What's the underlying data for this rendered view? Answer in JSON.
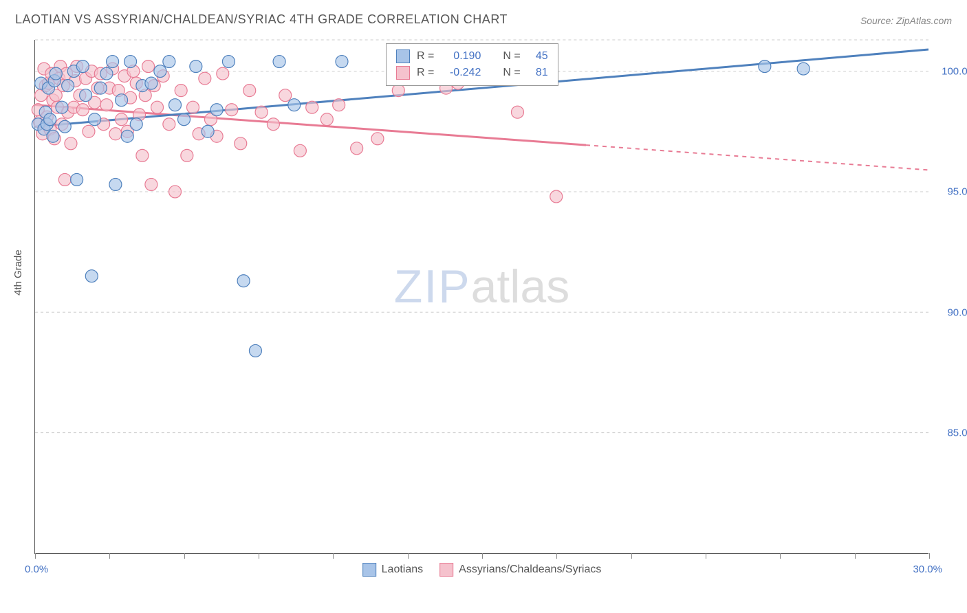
{
  "title": "LAOTIAN VS ASSYRIAN/CHALDEAN/SYRIAC 4TH GRADE CORRELATION CHART",
  "source": "Source: ZipAtlas.com",
  "y_axis_label": "4th Grade",
  "watermark_zip": "ZIP",
  "watermark_atlas": "atlas",
  "xlim": [
    0,
    30
  ],
  "ylim": [
    80,
    101.3
  ],
  "x_ticks": [
    0,
    2.5,
    5,
    7.5,
    10,
    12.5,
    15,
    17.5,
    20,
    22.5,
    25,
    27.5,
    30
  ],
  "x_tick_labels": {
    "0": "0.0%",
    "30": "30.0%"
  },
  "y_grid": [
    85,
    90,
    95,
    100,
    101.3
  ],
  "y_tick_labels": {
    "85": "85.0%",
    "90": "90.0%",
    "95": "95.0%",
    "100": "100.0%"
  },
  "series": {
    "laotians": {
      "label": "Laotians",
      "color_fill": "#a8c4e8",
      "color_stroke": "#4f81bd",
      "r_label": "R =",
      "r_value": "0.190",
      "n_label": "N =",
      "n_value": "45",
      "marker_radius": 9,
      "trend": {
        "x1": 0,
        "y1": 97.7,
        "x2": 30,
        "y2": 100.9,
        "data_xmax": 30
      },
      "points": [
        [
          0.1,
          97.8
        ],
        [
          0.2,
          99.5
        ],
        [
          0.3,
          97.6
        ],
        [
          0.35,
          98.3
        ],
        [
          0.4,
          97.8
        ],
        [
          0.45,
          99.3
        ],
        [
          0.5,
          98.0
        ],
        [
          0.6,
          97.3
        ],
        [
          0.65,
          99.6
        ],
        [
          0.7,
          99.9
        ],
        [
          0.9,
          98.5
        ],
        [
          1.0,
          97.7
        ],
        [
          1.1,
          99.4
        ],
        [
          1.3,
          100.0
        ],
        [
          1.4,
          95.5
        ],
        [
          1.6,
          100.2
        ],
        [
          1.7,
          99.0
        ],
        [
          1.9,
          91.5
        ],
        [
          2.0,
          98.0
        ],
        [
          2.2,
          99.3
        ],
        [
          2.4,
          99.9
        ],
        [
          2.6,
          100.4
        ],
        [
          2.7,
          95.3
        ],
        [
          2.9,
          98.8
        ],
        [
          3.1,
          97.3
        ],
        [
          3.2,
          100.4
        ],
        [
          3.4,
          97.8
        ],
        [
          3.6,
          99.4
        ],
        [
          3.9,
          99.5
        ],
        [
          4.2,
          100.0
        ],
        [
          4.5,
          100.4
        ],
        [
          4.7,
          98.6
        ],
        [
          5.0,
          98.0
        ],
        [
          5.4,
          100.2
        ],
        [
          5.8,
          97.5
        ],
        [
          6.1,
          98.4
        ],
        [
          6.5,
          100.4
        ],
        [
          7.0,
          91.3
        ],
        [
          7.4,
          88.4
        ],
        [
          8.2,
          100.4
        ],
        [
          8.7,
          98.6
        ],
        [
          10.3,
          100.4
        ],
        [
          24.5,
          100.2
        ],
        [
          25.8,
          100.1
        ]
      ]
    },
    "assyrians": {
      "label": "Assyrians/Chaldeans/Syriacs",
      "color_fill": "#f5c2cd",
      "color_stroke": "#e87b94",
      "r_label": "R =",
      "r_value": "-0.242",
      "n_label": "N =",
      "n_value": "81",
      "marker_radius": 9,
      "trend": {
        "x1": 0,
        "y1": 98.6,
        "x2": 30,
        "y2": 95.9,
        "data_xmax": 18.5
      },
      "points": [
        [
          0.1,
          98.4
        ],
        [
          0.15,
          97.9
        ],
        [
          0.2,
          99.0
        ],
        [
          0.25,
          97.4
        ],
        [
          0.3,
          100.1
        ],
        [
          0.35,
          99.4
        ],
        [
          0.4,
          98.1
        ],
        [
          0.45,
          99.5
        ],
        [
          0.5,
          97.6
        ],
        [
          0.55,
          99.9
        ],
        [
          0.6,
          98.8
        ],
        [
          0.65,
          97.2
        ],
        [
          0.7,
          99.0
        ],
        [
          0.75,
          98.5
        ],
        [
          0.8,
          99.7
        ],
        [
          0.85,
          100.2
        ],
        [
          0.9,
          97.8
        ],
        [
          0.95,
          99.4
        ],
        [
          1.0,
          95.5
        ],
        [
          1.05,
          99.9
        ],
        [
          1.1,
          98.3
        ],
        [
          1.2,
          97.0
        ],
        [
          1.3,
          98.5
        ],
        [
          1.35,
          99.6
        ],
        [
          1.4,
          100.2
        ],
        [
          1.5,
          99.0
        ],
        [
          1.6,
          98.4
        ],
        [
          1.7,
          99.7
        ],
        [
          1.8,
          97.5
        ],
        [
          1.9,
          100.0
        ],
        [
          2.0,
          98.7
        ],
        [
          2.1,
          99.3
        ],
        [
          2.2,
          99.9
        ],
        [
          2.3,
          97.8
        ],
        [
          2.4,
          98.6
        ],
        [
          2.5,
          99.3
        ],
        [
          2.6,
          100.1
        ],
        [
          2.7,
          97.4
        ],
        [
          2.8,
          99.2
        ],
        [
          2.9,
          98.0
        ],
        [
          3.0,
          99.8
        ],
        [
          3.1,
          97.5
        ],
        [
          3.2,
          98.9
        ],
        [
          3.3,
          100.0
        ],
        [
          3.4,
          99.5
        ],
        [
          3.5,
          98.2
        ],
        [
          3.6,
          96.5
        ],
        [
          3.7,
          99.0
        ],
        [
          3.8,
          100.2
        ],
        [
          3.9,
          95.3
        ],
        [
          4.0,
          99.4
        ],
        [
          4.1,
          98.5
        ],
        [
          4.3,
          99.8
        ],
        [
          4.5,
          97.8
        ],
        [
          4.7,
          95.0
        ],
        [
          4.9,
          99.2
        ],
        [
          5.1,
          96.5
        ],
        [
          5.3,
          98.5
        ],
        [
          5.5,
          97.4
        ],
        [
          5.7,
          99.7
        ],
        [
          5.9,
          98.0
        ],
        [
          6.1,
          97.3
        ],
        [
          6.3,
          99.9
        ],
        [
          6.6,
          98.4
        ],
        [
          6.9,
          97.0
        ],
        [
          7.2,
          99.2
        ],
        [
          7.6,
          98.3
        ],
        [
          8.0,
          97.8
        ],
        [
          8.4,
          99.0
        ],
        [
          8.9,
          96.7
        ],
        [
          9.3,
          98.5
        ],
        [
          9.8,
          98.0
        ],
        [
          10.2,
          98.6
        ],
        [
          10.8,
          96.8
        ],
        [
          11.5,
          97.2
        ],
        [
          12.2,
          99.2
        ],
        [
          13.8,
          99.3
        ],
        [
          14.2,
          99.5
        ],
        [
          16.2,
          98.3
        ],
        [
          17.5,
          94.8
        ]
      ]
    }
  }
}
